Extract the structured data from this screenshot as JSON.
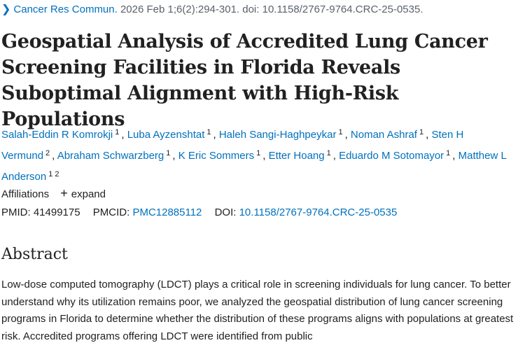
{
  "citation": {
    "chevron_icon": "chevron-right-icon",
    "journal": "Cancer Res Commun.",
    "details": " 2026 Feb 1;6(2):294-301. doi: 10.1158/2767-9764.CRC-25-0535."
  },
  "title": "Geospatial Analysis of Accredited Lung Cancer Screening Facilities in Florida Reveals Suboptimal Alignment with High-Risk Populations",
  "authors": [
    {
      "name": "Salah-Eddin R Komrokji",
      "affs": [
        "1"
      ]
    },
    {
      "name": "Luba Ayzenshtat",
      "affs": [
        "1"
      ]
    },
    {
      "name": "Haleh Sangi-Haghpeykar",
      "affs": [
        "1"
      ]
    },
    {
      "name": "Noman Ashraf",
      "affs": [
        "1"
      ]
    },
    {
      "name": "Sten H Vermund",
      "affs": [
        "2"
      ]
    },
    {
      "name": "Abraham Schwarzberg",
      "affs": [
        "1"
      ]
    },
    {
      "name": "K Eric Sommers",
      "affs": [
        "1"
      ]
    },
    {
      "name": "Etter Hoang",
      "affs": [
        "1"
      ]
    },
    {
      "name": "Eduardo M Sotomayor",
      "affs": [
        "1"
      ]
    },
    {
      "name": "Matthew L Anderson",
      "affs": [
        "1",
        "2"
      ]
    }
  ],
  "affiliations": {
    "label": "Affiliations",
    "expand_label": "expand",
    "expand_icon": "plus-icon"
  },
  "identifiers": {
    "pmid_label": "PMID:",
    "pmid": "41499175",
    "pmcid_label": "PMCID:",
    "pmcid": "PMC12885112",
    "doi_label": "DOI:",
    "doi": "10.1158/2767-9764.CRC-25-0535"
  },
  "abstract": {
    "heading": "Abstract",
    "text": "Low-dose computed tomography (LDCT) plays a critical role in screening individuals for lung cancer. To better understand why its utilization remains poor, we analyzed the geospatial distribution of lung cancer screening programs in Florida to determine whether the distribution of these programs aligns with populations at greatest risk. Accredited programs offering LDCT were identified from public"
  }
}
